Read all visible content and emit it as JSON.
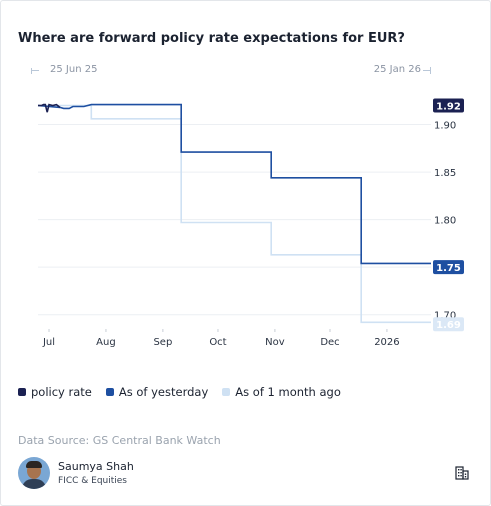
{
  "title": "Where are forward policy rate expectations for EUR?",
  "range_selector": {
    "start_label": "25 Jun 25",
    "end_label": "25 Jan 26"
  },
  "legend": [
    {
      "label": "policy rate",
      "color": "#1b2152"
    },
    {
      "label": "As of yesterday",
      "color": "#1e4fa1"
    },
    {
      "label": "As of 1 month ago",
      "color": "#cfe1f3"
    }
  ],
  "source_text": "Data Source: GS Central Bank Watch",
  "author": {
    "name": "Saumya Shah",
    "department": "FICC & Equities"
  },
  "icons": {
    "building": "building-icon"
  },
  "chart_data": {
    "type": "line",
    "title": "Where are forward policy rate expectations for EUR?",
    "x_type": "date",
    "xlim": [
      "2025-06-25",
      "2026-01-25"
    ],
    "x_tick_labels": [
      {
        "label": "Jul",
        "date": "2025-07-01"
      },
      {
        "label": "Aug",
        "date": "2025-08-01"
      },
      {
        "label": "Sep",
        "date": "2025-09-01"
      },
      {
        "label": "Oct",
        "date": "2025-10-01"
      },
      {
        "label": "Nov",
        "date": "2025-11-01"
      },
      {
        "label": "Dec",
        "date": "2025-12-01"
      },
      {
        "label": "2026",
        "date": "2026-01-01"
      }
    ],
    "y_ticks": [
      1.7,
      1.75,
      1.8,
      1.85,
      1.9
    ],
    "ylim": [
      1.685,
      1.93
    ],
    "grid": true,
    "y_axis_side": "right",
    "series": [
      {
        "name": "policy rate",
        "color": "#1b2152",
        "end_label": "1.92",
        "points": [
          [
            "2025-06-25",
            1.92
          ],
          [
            "2025-06-27",
            1.92
          ],
          [
            "2025-06-28",
            1.921
          ],
          [
            "2025-06-29",
            1.921
          ],
          [
            "2025-06-30",
            1.913
          ],
          [
            "2025-07-01",
            1.921
          ],
          [
            "2025-07-03",
            1.92
          ],
          [
            "2025-07-05",
            1.921
          ],
          [
            "2025-07-07",
            1.918
          ]
        ]
      },
      {
        "name": "As of yesterday",
        "color": "#1e4fa1",
        "end_label": "1.75",
        "points": [
          [
            "2025-06-25",
            1.92
          ],
          [
            "2025-07-07",
            1.918
          ],
          [
            "2025-07-09",
            1.917
          ],
          [
            "2025-07-12",
            1.917
          ],
          [
            "2025-07-14",
            1.919
          ],
          [
            "2025-07-20",
            1.919
          ],
          [
            "2025-07-24",
            1.921
          ],
          [
            "2025-09-11",
            1.921
          ],
          [
            "2025-09-11",
            1.871
          ],
          [
            "2025-10-30",
            1.871
          ],
          [
            "2025-10-30",
            1.844
          ],
          [
            "2025-12-18",
            1.844
          ],
          [
            "2025-12-18",
            1.754
          ],
          [
            "2026-01-25",
            1.754
          ]
        ]
      },
      {
        "name": "As of 1 month ago",
        "color": "#cfe1f3",
        "end_label": "1.69",
        "points": [
          [
            "2025-06-25",
            1.92
          ],
          [
            "2025-07-24",
            1.92
          ],
          [
            "2025-07-24",
            1.906
          ],
          [
            "2025-09-11",
            1.906
          ],
          [
            "2025-09-11",
            1.797
          ],
          [
            "2025-10-30",
            1.797
          ],
          [
            "2025-10-30",
            1.763
          ],
          [
            "2025-12-18",
            1.763
          ],
          [
            "2025-12-18",
            1.692
          ],
          [
            "2026-01-25",
            1.692
          ]
        ]
      }
    ]
  }
}
